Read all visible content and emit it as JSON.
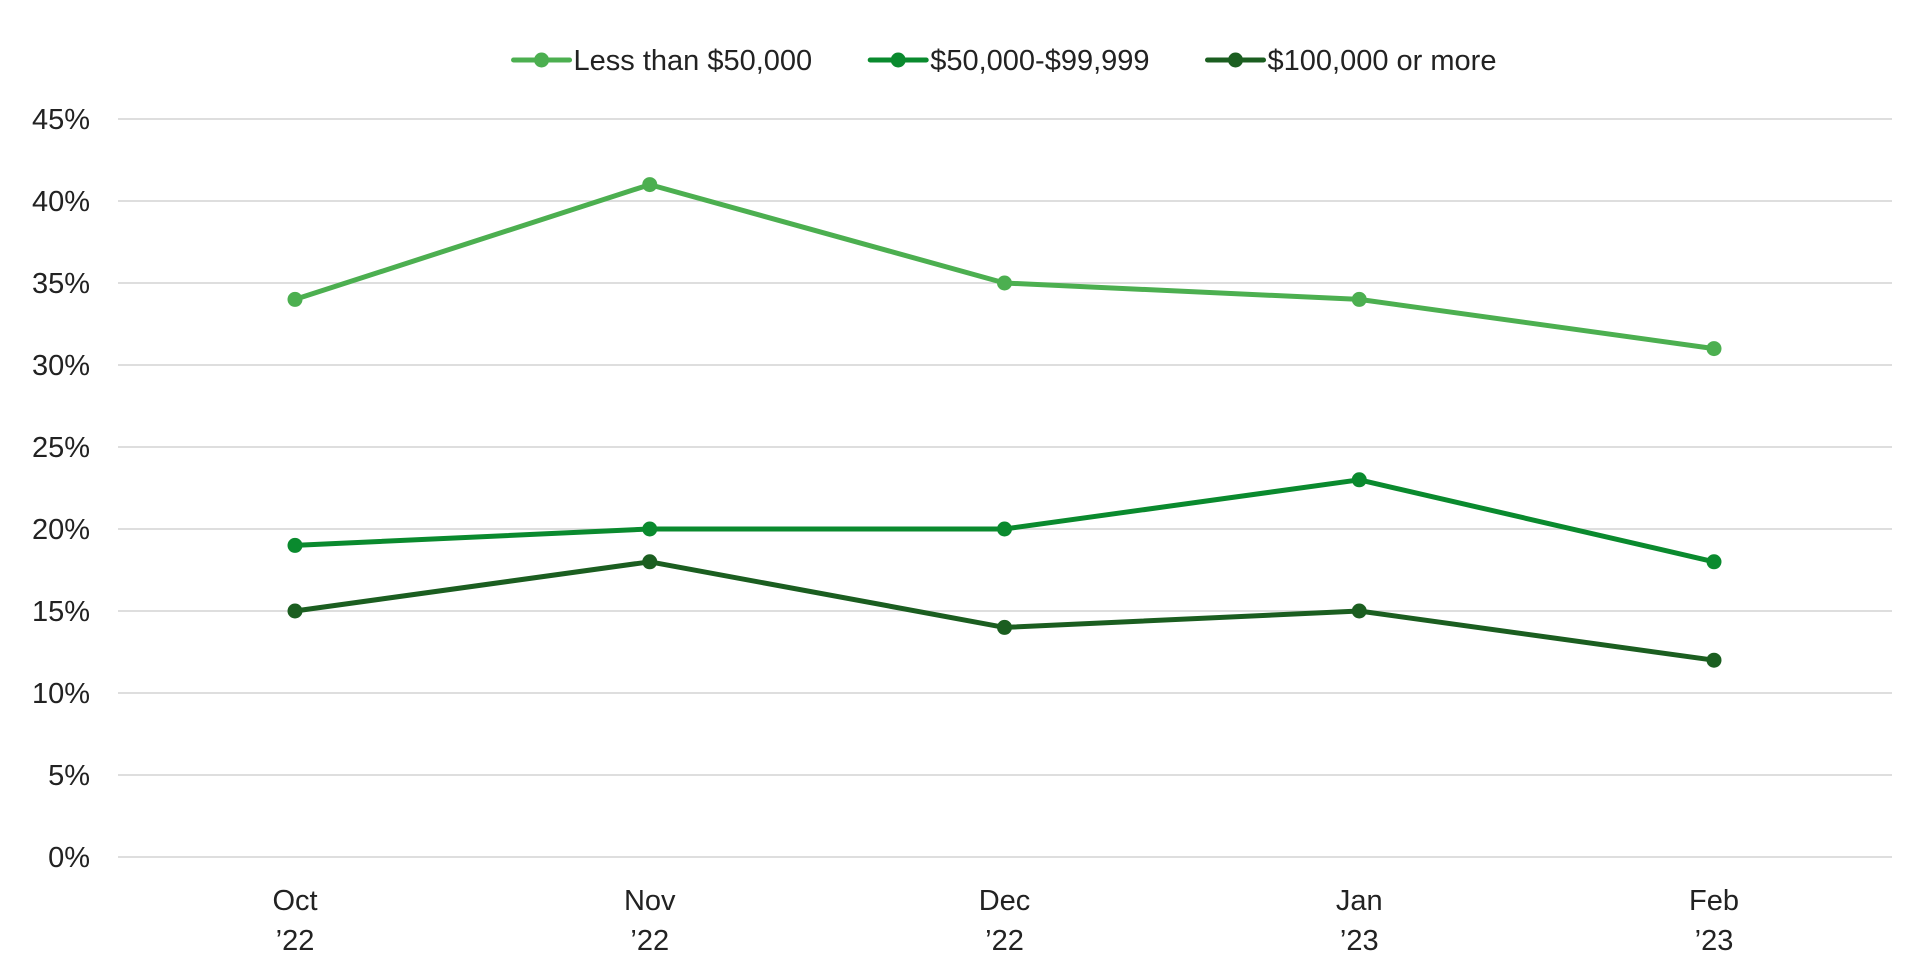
{
  "chart_data": {
    "type": "line",
    "categories": [
      [
        "Oct",
        "’22"
      ],
      [
        "Nov",
        "’22"
      ],
      [
        "Dec",
        "’22"
      ],
      [
        "Jan",
        "’23"
      ],
      [
        "Feb",
        "’23"
      ]
    ],
    "series": [
      {
        "name": "Less than $50,000",
        "color": "#4caf50",
        "values": [
          34,
          41,
          35,
          34,
          31
        ]
      },
      {
        "name": "$50,000-$99,999",
        "color": "#0a8a2e",
        "values": [
          19,
          20,
          20,
          23,
          18
        ]
      },
      {
        "name": "$100,000 or more",
        "color": "#1b5e20",
        "values": [
          15,
          18,
          14,
          15,
          12
        ]
      }
    ],
    "ylim": [
      0,
      45
    ],
    "y_ticks": [
      0,
      5,
      10,
      15,
      20,
      25,
      30,
      35,
      40,
      45
    ],
    "y_tick_format": "percent",
    "grid": true,
    "legend_position": "top-center",
    "title": "",
    "xlabel": "",
    "ylabel": ""
  }
}
